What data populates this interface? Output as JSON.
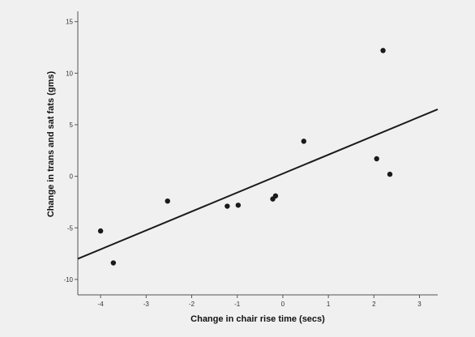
{
  "chart_data": {
    "type": "scatter",
    "title": "",
    "xlabel": "Change in chair rise time (secs)",
    "ylabel": "Change in trans and sat fats (gms)",
    "xlim": [
      -4.5,
      3.4
    ],
    "ylim": [
      -11.5,
      16
    ],
    "xticks": [
      -4,
      -3,
      -2,
      -1,
      0,
      1,
      2,
      3
    ],
    "yticks": [
      -10,
      -5,
      0,
      5,
      10,
      15
    ],
    "xtick_labels": [
      "-4",
      "-3",
      "-2",
      "-1",
      "0",
      "1",
      "2",
      "3"
    ],
    "ytick_labels": [
      "-10",
      "-5",
      "0",
      "5",
      "10",
      "15"
    ],
    "grid": false,
    "points": [
      {
        "x": -4.0,
        "y": -5.3
      },
      {
        "x": -3.72,
        "y": -8.4
      },
      {
        "x": -2.53,
        "y": -2.4
      },
      {
        "x": -1.22,
        "y": -2.9
      },
      {
        "x": -0.98,
        "y": -2.8
      },
      {
        "x": -0.22,
        "y": -2.2
      },
      {
        "x": -0.16,
        "y": -1.9
      },
      {
        "x": 0.46,
        "y": 3.4
      },
      {
        "x": 2.06,
        "y": 1.7
      },
      {
        "x": 2.2,
        "y": 12.2
      },
      {
        "x": 2.35,
        "y": 0.2
      }
    ],
    "fit_line": {
      "x1": -4.5,
      "y1": -8.0,
      "x2": 3.4,
      "y2": 6.5
    },
    "colors": {
      "background": "#f0f0f0",
      "points": "#1a1a1a",
      "line": "#1a1a1a",
      "axis": "#555555"
    }
  }
}
